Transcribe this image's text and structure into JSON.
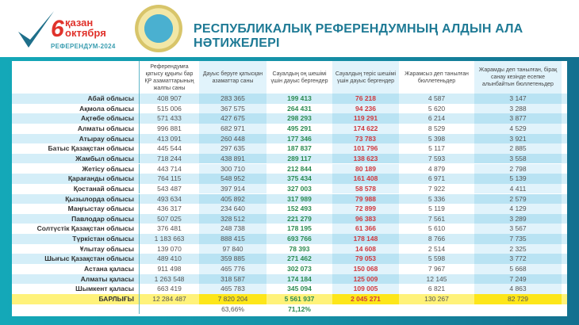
{
  "logo": {
    "number": "6",
    "line1": "қазан",
    "line2": "октября",
    "line3": "РЕФЕРЕНДУМ-2024"
  },
  "title": "РЕСПУБЛИКАЛЫҚ РЕФЕРЕНДУМНЫҢ АЛДЫН АЛА НӘТИЖЕЛЕРІ",
  "colors": {
    "accent": "#1e7a95",
    "positive": "#2a8a50",
    "negative": "#d0393e",
    "total_highlight": "#fde61a"
  },
  "table": {
    "headers": [
      "Референдумға қатысу құқығы бар ҚР азаматтарының жалпы саны",
      "Дауыс беруге қатысқан азаматтар саны",
      "Сауалдың оң шешімі үшін дауыс бергендер",
      "Сауалдың теріс шешімі үшін дауыс бергендер",
      "Жарамсыз деп танылған бюллетеньдер",
      "Жарамды деп танылған, бірақ санау кезінде есепке алынбайтын бюллетеньдер"
    ],
    "rows": [
      [
        "Абай облысы",
        "408 907",
        "283 365",
        "199 413",
        "76 218",
        "4 587",
        "3 147"
      ],
      [
        "Ақмола облысы",
        "515 006",
        "367 575",
        "264 431",
        "94 236",
        "5 620",
        "3 288"
      ],
      [
        "Ақтөбе облысы",
        "571 433",
        "427 675",
        "298 293",
        "119 291",
        "6 214",
        "3 877"
      ],
      [
        "Алматы облысы",
        "996 881",
        "682 971",
        "495 291",
        "174 622",
        "8 529",
        "4 529"
      ],
      [
        "Атырау облысы",
        "413 091",
        "260 448",
        "177 346",
        "73 783",
        "5 398",
        "3 921"
      ],
      [
        "Батыс Қазақстан облысы",
        "445 544",
        "297 635",
        "187 837",
        "101 796",
        "5 117",
        "2 885"
      ],
      [
        "Жамбыл облысы",
        "718 244",
        "438 891",
        "289 117",
        "138 623",
        "7 593",
        "3 558"
      ],
      [
        "Жетісу облысы",
        "443 714",
        "300 710",
        "212 844",
        "80 189",
        "4 879",
        "2 798"
      ],
      [
        "Қарағанды облысы",
        "764 115",
        "548 952",
        "375 434",
        "161 408",
        "6 971",
        "5 139"
      ],
      [
        "Қостанай облысы",
        "543 487",
        "397 914",
        "327 003",
        "58 578",
        "7 922",
        "4 411"
      ],
      [
        "Қызылорда облысы",
        "493 634",
        "405 892",
        "317 989",
        "79 988",
        "5 336",
        "2 579"
      ],
      [
        "Маңғыстау облысы",
        "436 317",
        "234 640",
        "152 493",
        "72 899",
        "5 119",
        "4 129"
      ],
      [
        "Павлодар облысы",
        "507 025",
        "328 512",
        "221 279",
        "96 383",
        "7 561",
        "3 289"
      ],
      [
        "Солтүстік Қазақстан облысы",
        "376 481",
        "248 738",
        "178 195",
        "61 366",
        "5 610",
        "3 567"
      ],
      [
        "Түркістан облысы",
        "1 183 663",
        "888 415",
        "693 766",
        "178 148",
        "8 766",
        "7 735"
      ],
      [
        "Ұлытау облысы",
        "139 070",
        "97 840",
        "78 393",
        "14 608",
        "2 514",
        "2 325"
      ],
      [
        "Шығыс Қазақстан облысы",
        "489 410",
        "359 885",
        "271 462",
        "79 053",
        "5 598",
        "3 772"
      ],
      [
        "Астана қаласы",
        "911 498",
        "465 776",
        "302 073",
        "150 068",
        "7 967",
        "5 668"
      ],
      [
        "Алматы қаласы",
        "1 263 548",
        "318 587",
        "174 184",
        "125 009",
        "12 145",
        "7 249"
      ],
      [
        "Шымкент қаласы",
        "663 419",
        "465 783",
        "345 094",
        "109 005",
        "6 821",
        "4 863"
      ]
    ],
    "total": [
      "БАРЛЫҒЫ",
      "12 284 487",
      "7 820 204",
      "5 561 937",
      "2 045 271",
      "130 267",
      "82 729"
    ],
    "percentages": {
      "turnout": "63,66%",
      "yes": "71,12%"
    }
  }
}
